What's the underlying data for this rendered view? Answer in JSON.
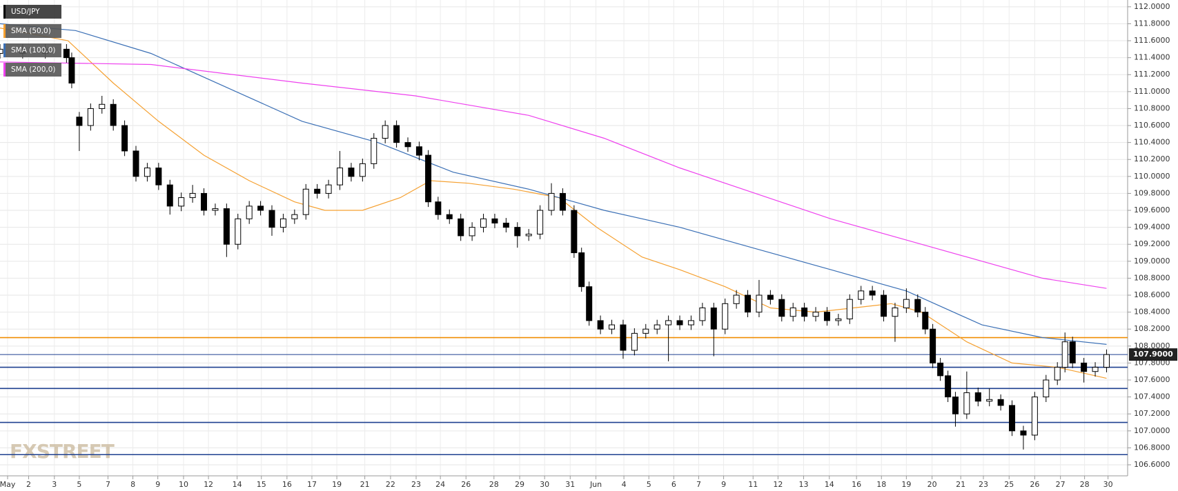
{
  "chart_data": {
    "type": "candlestick",
    "title": "USD/JPY",
    "watermark": "FXSTREET",
    "grid": true,
    "up_color": "#ffffff",
    "down_color": "#000000",
    "xlim": [
      0,
      99.53
    ],
    "ylim": [
      106.47,
      112.08
    ],
    "xticks": [
      {
        "value": 0.67,
        "label": "May"
      },
      {
        "value": 2.53,
        "label": "2"
      },
      {
        "value": 4.8,
        "label": "3"
      },
      {
        "value": 7,
        "label": "5"
      },
      {
        "value": 9.53,
        "label": "7"
      },
      {
        "value": 11.73,
        "label": "8"
      },
      {
        "value": 13.93,
        "label": "9"
      },
      {
        "value": 16.2,
        "label": "10"
      },
      {
        "value": 18.4,
        "label": "12"
      },
      {
        "value": 20.93,
        "label": "14"
      },
      {
        "value": 23.07,
        "label": "15"
      },
      {
        "value": 25.33,
        "label": "16"
      },
      {
        "value": 27.53,
        "label": "17"
      },
      {
        "value": 29.73,
        "label": "19"
      },
      {
        "value": 32.2,
        "label": "21"
      },
      {
        "value": 34.47,
        "label": "22"
      },
      {
        "value": 36.73,
        "label": "23"
      },
      {
        "value": 38.87,
        "label": "24"
      },
      {
        "value": 41.13,
        "label": "26"
      },
      {
        "value": 43.6,
        "label": "28"
      },
      {
        "value": 45.87,
        "label": "29"
      },
      {
        "value": 48.07,
        "label": "30"
      },
      {
        "value": 50.33,
        "label": "31"
      },
      {
        "value": 52.6,
        "label": "Jun"
      },
      {
        "value": 55.07,
        "label": "4"
      },
      {
        "value": 57.27,
        "label": "5"
      },
      {
        "value": 59.47,
        "label": "6"
      },
      {
        "value": 61.67,
        "label": "7"
      },
      {
        "value": 63.87,
        "label": "9"
      },
      {
        "value": 66.47,
        "label": "11"
      },
      {
        "value": 68.67,
        "label": "12"
      },
      {
        "value": 70.93,
        "label": "13"
      },
      {
        "value": 73.2,
        "label": "14"
      },
      {
        "value": 75.6,
        "label": "16"
      },
      {
        "value": 77.8,
        "label": "18"
      },
      {
        "value": 80,
        "label": "19"
      },
      {
        "value": 82.27,
        "label": "20"
      },
      {
        "value": 84.8,
        "label": "21"
      },
      {
        "value": 86.8,
        "label": "23"
      },
      {
        "value": 89.07,
        "label": "25"
      },
      {
        "value": 91.33,
        "label": "26"
      },
      {
        "value": 93.6,
        "label": "27"
      },
      {
        "value": 95.73,
        "label": "28"
      },
      {
        "value": 97.8,
        "label": "30"
      }
    ],
    "yticks": [
      {
        "value": 106.6,
        "label": "106.6000"
      },
      {
        "value": 106.8,
        "label": "106.8000"
      },
      {
        "value": 107.0,
        "label": "107.0000"
      },
      {
        "value": 107.2,
        "label": "107.2000"
      },
      {
        "value": 107.4,
        "label": "107.4000"
      },
      {
        "value": 107.6,
        "label": "107.6000"
      },
      {
        "value": 107.8,
        "label": "107.8000"
      },
      {
        "value": 108.0,
        "label": "108.0000"
      },
      {
        "value": 108.2,
        "label": "108.2000"
      },
      {
        "value": 108.4,
        "label": "108.4000"
      },
      {
        "value": 108.6,
        "label": "108.6000"
      },
      {
        "value": 108.8,
        "label": "108.8000"
      },
      {
        "value": 109.0,
        "label": "109.0000"
      },
      {
        "value": 109.2,
        "label": "109.2000"
      },
      {
        "value": 109.4,
        "label": "109.4000"
      },
      {
        "value": 109.6,
        "label": "109.6000"
      },
      {
        "value": 109.8,
        "label": "109.8000"
      },
      {
        "value": 110.0,
        "label": "110.0000"
      },
      {
        "value": 110.2,
        "label": "110.2000"
      },
      {
        "value": 110.4,
        "label": "110.4000"
      },
      {
        "value": 110.6,
        "label": "110.6000"
      },
      {
        "value": 110.8,
        "label": "110.8000"
      },
      {
        "value": 111.0,
        "label": "111.0000"
      },
      {
        "value": 111.2,
        "label": "111.2000"
      },
      {
        "value": 111.4,
        "label": "111.4000"
      },
      {
        "value": 111.6,
        "label": "111.6000"
      },
      {
        "value": 111.8,
        "label": "111.8000"
      },
      {
        "value": 112.0,
        "label": "112.0000"
      }
    ],
    "candles": [
      [
        0,
        111.45,
        111.56,
        111.39,
        111.5
      ],
      [
        2,
        111.5,
        111.56,
        111.39,
        111.45
      ],
      [
        4,
        111.45,
        111.56,
        111.39,
        111.5
      ],
      [
        5.87,
        111.5,
        111.56,
        111.34,
        111.4
      ],
      [
        6.33,
        111.4,
        111.46,
        111.04,
        111.1
      ],
      [
        7,
        110.7,
        110.76,
        110.3,
        110.6
      ],
      [
        8,
        110.6,
        110.86,
        110.54,
        110.8
      ],
      [
        9,
        110.8,
        110.95,
        110.74,
        110.85
      ],
      [
        10,
        110.85,
        110.91,
        110.54,
        110.6
      ],
      [
        11,
        110.6,
        110.66,
        110.24,
        110.3
      ],
      [
        12,
        110.3,
        110.36,
        109.94,
        110.0
      ],
      [
        13,
        110.0,
        110.16,
        109.94,
        110.1
      ],
      [
        14,
        110.1,
        110.16,
        109.84,
        109.9
      ],
      [
        15,
        109.9,
        109.96,
        109.55,
        109.65
      ],
      [
        16,
        109.65,
        109.81,
        109.59,
        109.75
      ],
      [
        17,
        109.75,
        109.9,
        109.69,
        109.8
      ],
      [
        18,
        109.8,
        109.86,
        109.54,
        109.6
      ],
      [
        19,
        109.6,
        109.68,
        109.54,
        109.62
      ],
      [
        20,
        109.62,
        109.68,
        109.05,
        109.2
      ],
      [
        21,
        109.2,
        109.56,
        109.14,
        109.5
      ],
      [
        22,
        109.5,
        109.71,
        109.44,
        109.65
      ],
      [
        23,
        109.65,
        109.71,
        109.54,
        109.6
      ],
      [
        24,
        109.6,
        109.66,
        109.3,
        109.4
      ],
      [
        25,
        109.4,
        109.56,
        109.34,
        109.5
      ],
      [
        26,
        109.5,
        109.61,
        109.44,
        109.55
      ],
      [
        27,
        109.55,
        109.91,
        109.49,
        109.85
      ],
      [
        28,
        109.85,
        109.91,
        109.74,
        109.8
      ],
      [
        29,
        109.8,
        109.96,
        109.74,
        109.9
      ],
      [
        30,
        109.9,
        110.3,
        109.84,
        110.1
      ],
      [
        31,
        110.1,
        110.16,
        109.94,
        110.0
      ],
      [
        32,
        110.0,
        110.21,
        109.94,
        110.15
      ],
      [
        33,
        110.15,
        110.51,
        110.09,
        110.45
      ],
      [
        34,
        110.45,
        110.66,
        110.39,
        110.6
      ],
      [
        35,
        110.6,
        110.66,
        110.34,
        110.4
      ],
      [
        36,
        110.4,
        110.46,
        110.29,
        110.35
      ],
      [
        37,
        110.35,
        110.41,
        110.19,
        110.25
      ],
      [
        37.8,
        110.25,
        110.31,
        109.64,
        109.7
      ],
      [
        38.67,
        109.7,
        109.76,
        109.49,
        109.55
      ],
      [
        39.67,
        109.55,
        109.61,
        109.44,
        109.5
      ],
      [
        40.67,
        109.5,
        109.56,
        109.24,
        109.3
      ],
      [
        41.67,
        109.3,
        109.46,
        109.24,
        109.4
      ],
      [
        42.67,
        109.4,
        109.56,
        109.34,
        109.5
      ],
      [
        43.67,
        109.5,
        109.56,
        109.39,
        109.45
      ],
      [
        44.67,
        109.45,
        109.51,
        109.34,
        109.4
      ],
      [
        45.67,
        109.4,
        109.46,
        109.16,
        109.3
      ],
      [
        46.67,
        109.3,
        109.38,
        109.24,
        109.32
      ],
      [
        47.67,
        109.32,
        109.66,
        109.26,
        109.6
      ],
      [
        48.67,
        109.6,
        109.92,
        109.54,
        109.8
      ],
      [
        49.67,
        109.8,
        109.86,
        109.54,
        109.6
      ],
      [
        50.67,
        109.6,
        109.66,
        109.04,
        109.1
      ],
      [
        51.33,
        109.1,
        109.16,
        108.64,
        108.7
      ],
      [
        52,
        108.7,
        108.76,
        108.24,
        108.3
      ],
      [
        53,
        108.3,
        108.36,
        108.14,
        108.2
      ],
      [
        54,
        108.2,
        108.31,
        108.14,
        108.25
      ],
      [
        55,
        108.25,
        108.31,
        107.85,
        107.95
      ],
      [
        56,
        107.95,
        108.21,
        107.89,
        108.15
      ],
      [
        57,
        108.15,
        108.26,
        108.09,
        108.2
      ],
      [
        58,
        108.2,
        108.31,
        108.14,
        108.25
      ],
      [
        59,
        108.25,
        108.36,
        107.82,
        108.3
      ],
      [
        60,
        108.3,
        108.36,
        108.19,
        108.25
      ],
      [
        61,
        108.25,
        108.36,
        108.19,
        108.3
      ],
      [
        62,
        108.3,
        108.51,
        108.24,
        108.45
      ],
      [
        63,
        108.45,
        108.51,
        107.88,
        108.2
      ],
      [
        64,
        108.2,
        108.56,
        108.14,
        108.5
      ],
      [
        65,
        108.5,
        108.66,
        108.44,
        108.6
      ],
      [
        66,
        108.6,
        108.66,
        108.34,
        108.4
      ],
      [
        67,
        108.4,
        108.78,
        108.34,
        108.6
      ],
      [
        68,
        108.6,
        108.66,
        108.49,
        108.55
      ],
      [
        69,
        108.55,
        108.61,
        108.29,
        108.35
      ],
      [
        70,
        108.35,
        108.51,
        108.29,
        108.45
      ],
      [
        71,
        108.45,
        108.51,
        108.29,
        108.35
      ],
      [
        72,
        108.35,
        108.46,
        108.29,
        108.4
      ],
      [
        73,
        108.4,
        108.46,
        108.24,
        108.3
      ],
      [
        74,
        108.3,
        108.38,
        108.24,
        108.32
      ],
      [
        75,
        108.32,
        108.61,
        108.26,
        108.55
      ],
      [
        76,
        108.55,
        108.71,
        108.49,
        108.65
      ],
      [
        77,
        108.65,
        108.71,
        108.54,
        108.6
      ],
      [
        78,
        108.6,
        108.66,
        108.29,
        108.35
      ],
      [
        79,
        108.35,
        108.51,
        108.05,
        108.45
      ],
      [
        80,
        108.45,
        108.68,
        108.39,
        108.55
      ],
      [
        81,
        108.55,
        108.61,
        108.34,
        108.4
      ],
      [
        81.67,
        108.4,
        108.46,
        108.14,
        108.2
      ],
      [
        82.33,
        108.2,
        108.26,
        107.74,
        107.8
      ],
      [
        83,
        107.8,
        107.86,
        107.59,
        107.65
      ],
      [
        83.67,
        107.65,
        107.71,
        107.34,
        107.4
      ],
      [
        84.33,
        107.4,
        107.46,
        107.05,
        107.2
      ],
      [
        85.33,
        107.2,
        107.7,
        107.14,
        107.45
      ],
      [
        86.33,
        107.45,
        107.51,
        107.29,
        107.35
      ],
      [
        87.33,
        107.35,
        107.5,
        107.29,
        107.37
      ],
      [
        88.33,
        107.37,
        107.43,
        107.24,
        107.3
      ],
      [
        89.33,
        107.3,
        107.36,
        106.94,
        107.0
      ],
      [
        90.33,
        107.0,
        107.06,
        106.78,
        106.95
      ],
      [
        91.33,
        106.95,
        107.46,
        106.89,
        107.4
      ],
      [
        92.33,
        107.4,
        107.66,
        107.34,
        107.6
      ],
      [
        93.33,
        107.6,
        107.81,
        107.54,
        107.75
      ],
      [
        94,
        107.75,
        108.16,
        107.69,
        108.05
      ],
      [
        94.67,
        108.05,
        108.11,
        107.74,
        107.8
      ],
      [
        95.67,
        107.8,
        107.86,
        107.57,
        107.7
      ],
      [
        96.67,
        107.7,
        107.81,
        107.64,
        107.75
      ],
      [
        97.67,
        107.75,
        107.96,
        107.69,
        107.9
      ]
    ],
    "series": [
      {
        "name": "SMA (50,0)",
        "color": "#f5a030",
        "x": [
          0,
          6,
          10,
          14,
          18,
          22,
          26,
          28.67,
          32,
          35.33,
          38,
          41.33,
          45.33,
          49.33,
          52.67,
          56.67,
          60,
          64,
          68,
          72,
          75.33,
          78.67,
          81.33,
          85.33,
          89.33,
          93.33,
          97.67
        ],
        "values": [
          111.75,
          111.6,
          111.1,
          110.65,
          110.25,
          109.95,
          109.7,
          109.6,
          109.6,
          109.75,
          109.95,
          109.92,
          109.85,
          109.75,
          109.4,
          109.05,
          108.9,
          108.7,
          108.45,
          108.4,
          108.45,
          108.5,
          108.4,
          108.05,
          107.8,
          107.75,
          107.62
        ]
      },
      {
        "name": "SMA (100,0)",
        "color": "#3a6fb5",
        "x": [
          0,
          6.67,
          13.33,
          20,
          26.67,
          33.33,
          40,
          46.67,
          50.67,
          53.33,
          60,
          66.67,
          73.33,
          80,
          86.67,
          92,
          97.67
        ],
        "values": [
          111.8,
          111.72,
          111.45,
          111.05,
          110.65,
          110.4,
          110.05,
          109.85,
          109.7,
          109.6,
          109.4,
          109.15,
          108.9,
          108.65,
          108.25,
          108.1,
          108.02
        ]
      },
      {
        "name": "SMA (200,0)",
        "color": "#ee40ee",
        "x": [
          0,
          13.33,
          26.67,
          36.67,
          46.67,
          53.33,
          60,
          66.67,
          73.33,
          80,
          86.67,
          92,
          97.67
        ],
        "values": [
          111.35,
          111.32,
          111.1,
          110.95,
          110.72,
          110.45,
          110.1,
          109.8,
          109.5,
          109.25,
          109.0,
          108.8,
          108.68
        ]
      }
    ],
    "levels": [
      {
        "value": 108.1,
        "color": "#f08c00"
      },
      {
        "value": 107.75,
        "color": "#1c3f8f"
      },
      {
        "value": 107.5,
        "color": "#1c3f8f"
      },
      {
        "value": 107.1,
        "color": "#1c3f8f"
      },
      {
        "value": 106.72,
        "color": "#1c3f8f"
      }
    ],
    "last_price": {
      "value": 107.9,
      "value_label": "107.9000",
      "color": "#1c3f8f"
    }
  }
}
